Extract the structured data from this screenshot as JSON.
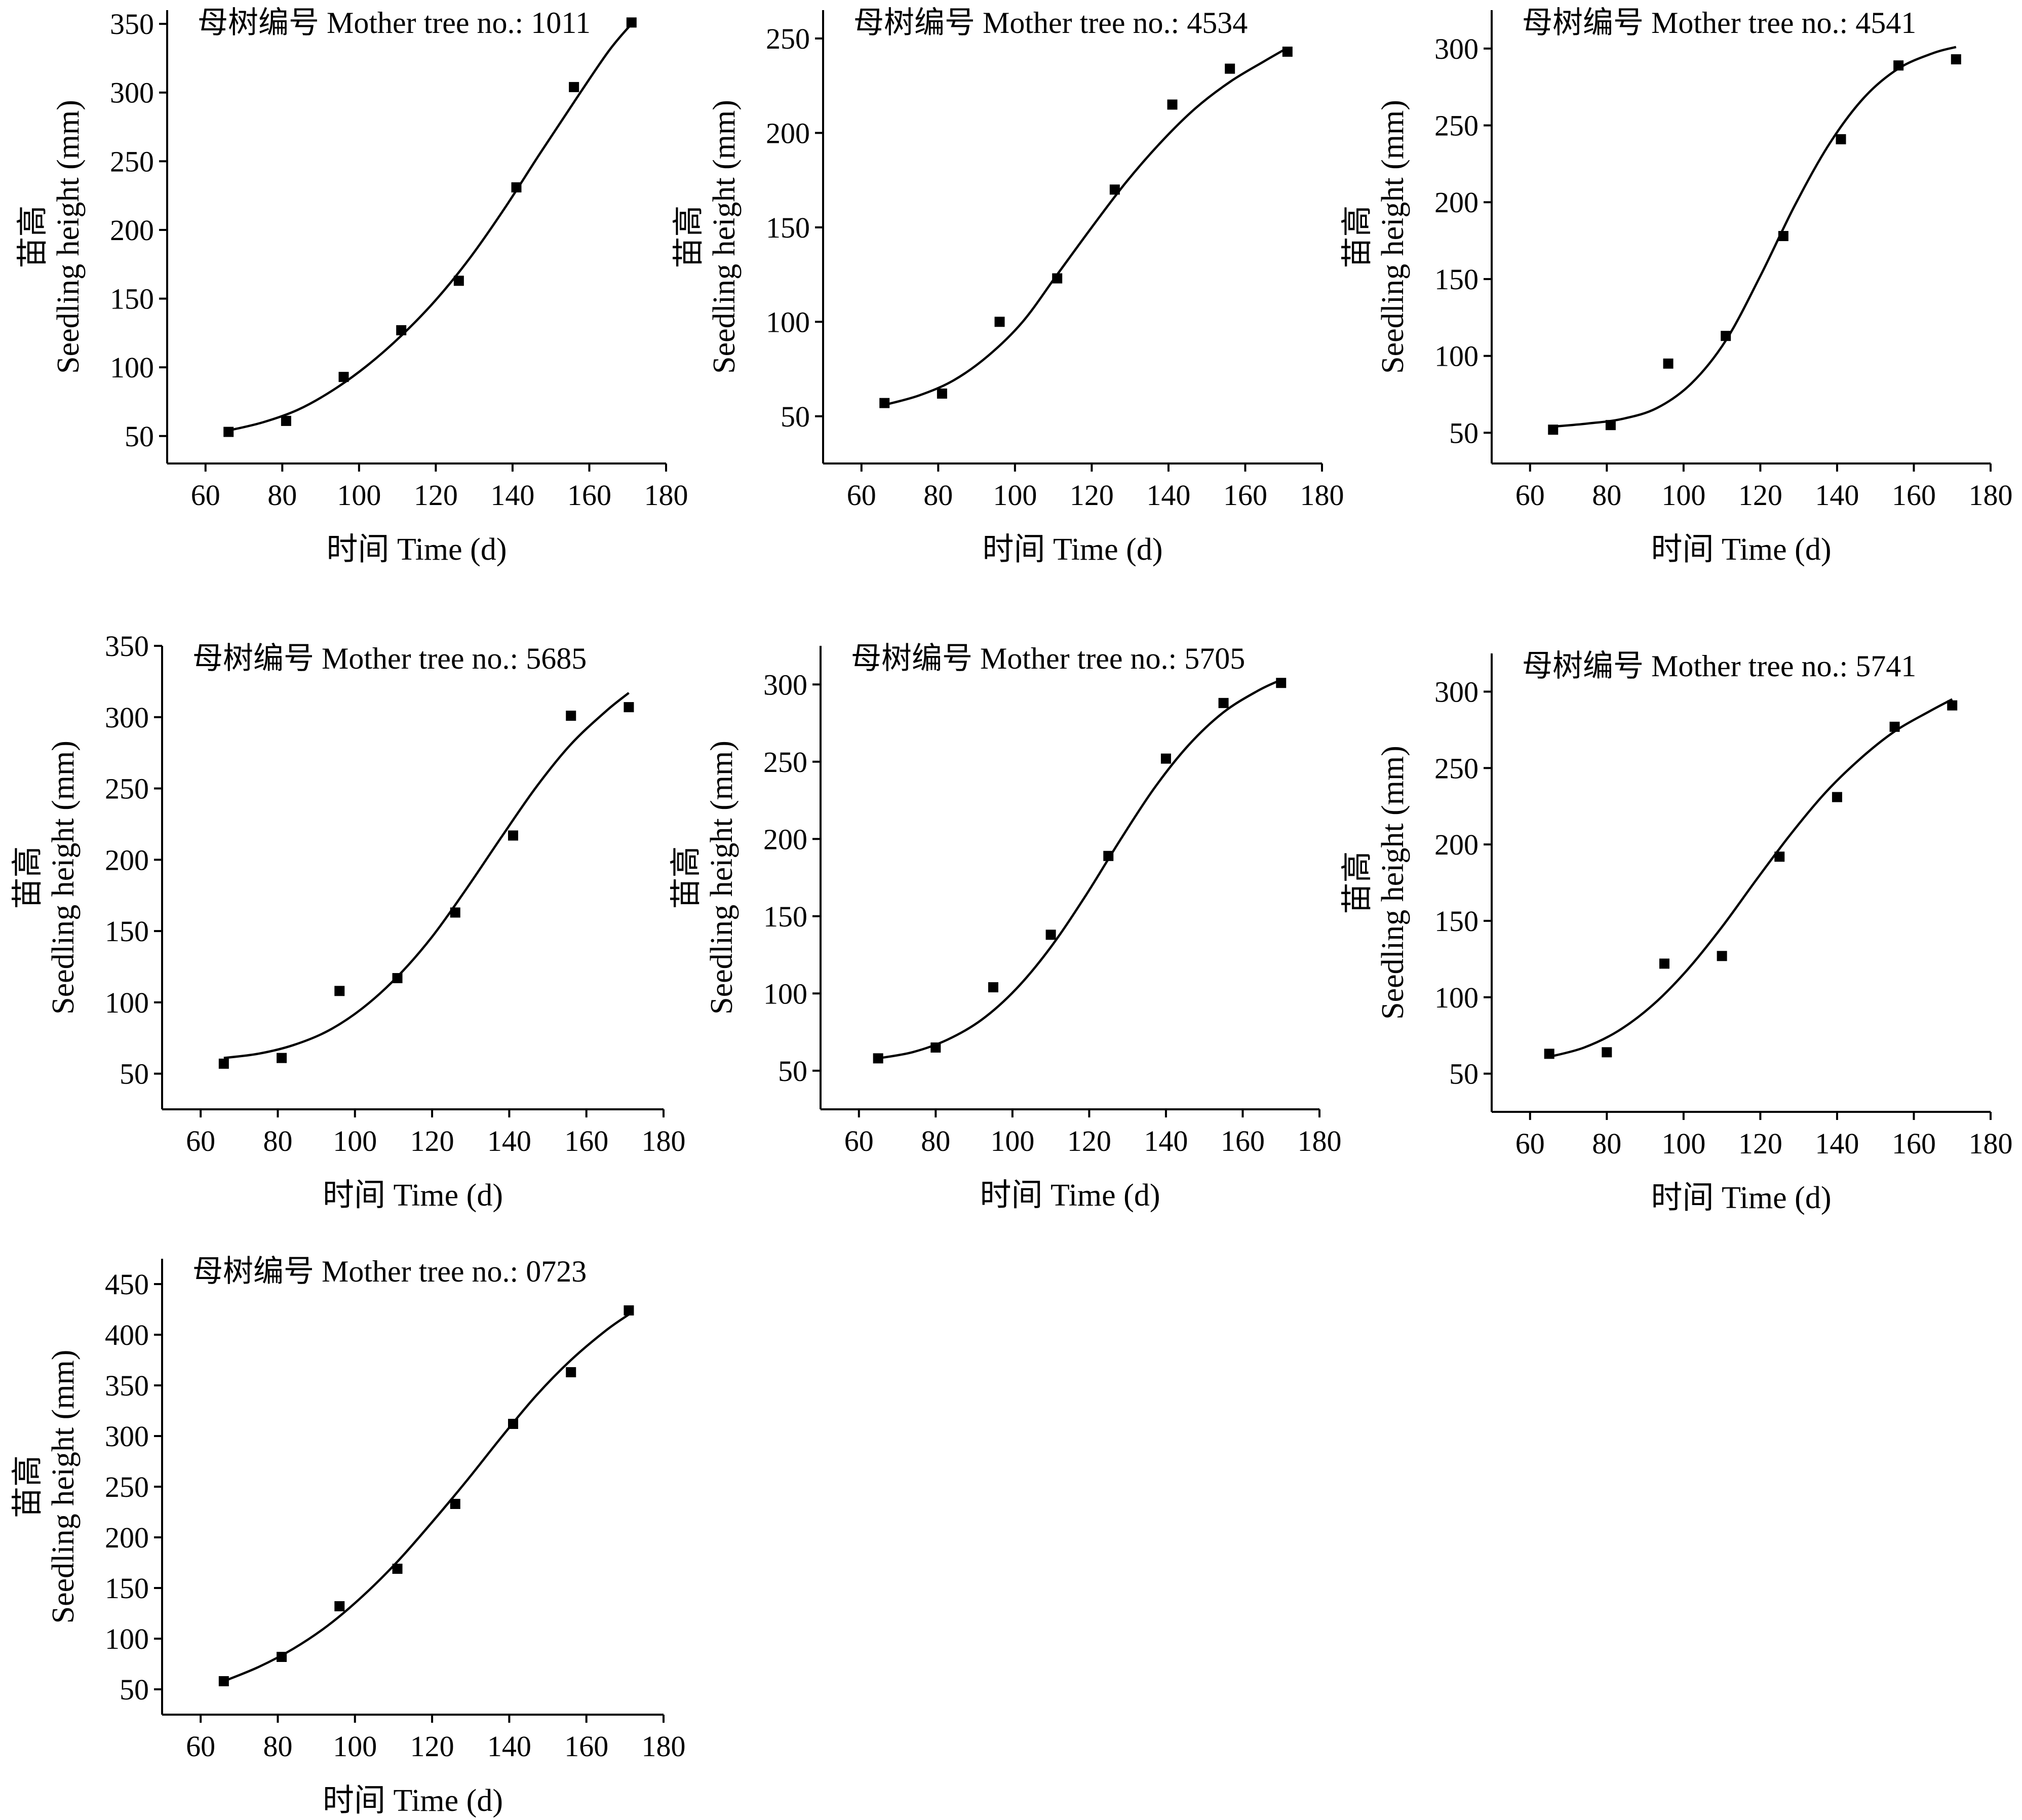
{
  "chart_data": [
    {
      "type": "scatter",
      "title": "母树编号 Mother tree no.: 1011",
      "ylabel_cn": "苗高",
      "ylabel": "Seedling height (mm)",
      "xlabel": "时间 Time (d)",
      "xlim": [
        50,
        180
      ],
      "ylim": [
        30,
        360
      ],
      "xticks": [
        "60",
        "80",
        "100",
        "120",
        "140",
        "160",
        "180"
      ],
      "yticks": [
        "50",
        "100",
        "150",
        "200",
        "250",
        "300",
        "350"
      ],
      "points": {
        "x": [
          66,
          81,
          96,
          111,
          126,
          141,
          156,
          171
        ],
        "y": [
          53,
          61,
          93,
          127,
          163,
          231,
          304,
          351
        ]
      },
      "fit": {
        "x": [
          66,
          75,
          84,
          93,
          102,
          111,
          120,
          129,
          138,
          147,
          156,
          165,
          171
        ],
        "y": [
          54,
          60,
          69,
          83,
          101,
          123,
          149,
          180,
          216,
          255,
          293,
          330,
          350
        ]
      },
      "colors": {
        "points": "#000000",
        "curve": "#000000"
      }
    },
    {
      "type": "scatter",
      "title": "母树编号 Mother tree no.: 4534",
      "ylabel_cn": "苗高",
      "ylabel": "Seedling height (mm)",
      "xlabel": "时间 Time (d)",
      "xlim": [
        50,
        180
      ],
      "ylim": [
        25,
        265
      ],
      "xticks": [
        "60",
        "80",
        "100",
        "120",
        "140",
        "160",
        "180"
      ],
      "yticks": [
        "50",
        "100",
        "150",
        "200",
        "250"
      ],
      "points": {
        "x": [
          66,
          81,
          96,
          111,
          126,
          141,
          156,
          171
        ],
        "y": [
          57,
          62,
          100,
          123,
          170,
          215,
          234,
          243
        ]
      },
      "fit": {
        "x": [
          66,
          75,
          84,
          93,
          102,
          111,
          120,
          129,
          138,
          147,
          156,
          165,
          171
        ],
        "y": [
          56,
          61,
          69,
          82,
          100,
          125,
          150,
          174,
          195,
          213,
          227,
          238,
          245
        ]
      },
      "colors": {
        "points": "#000000",
        "curve": "#000000"
      }
    },
    {
      "type": "scatter",
      "title": "母树编号 Mother tree no.: 4541",
      "ylabel_cn": "苗高",
      "ylabel": "Seedling height (mm)",
      "xlabel": "时间 Time (d)",
      "xlim": [
        50,
        180
      ],
      "ylim": [
        30,
        325
      ],
      "xticks": [
        "60",
        "80",
        "100",
        "120",
        "140",
        "160",
        "180"
      ],
      "yticks": [
        "50",
        "100",
        "150",
        "200",
        "250",
        "300"
      ],
      "points": {
        "x": [
          66,
          81,
          96,
          111,
          126,
          141,
          156,
          171
        ],
        "y": [
          52,
          55,
          95,
          113,
          178,
          241,
          289,
          293
        ]
      },
      "fit": {
        "x": [
          66,
          75,
          84,
          93,
          102,
          111,
          120,
          129,
          138,
          147,
          156,
          165,
          171
        ],
        "y": [
          54,
          56,
          59,
          66,
          82,
          110,
          152,
          198,
          238,
          268,
          287,
          297,
          301
        ]
      },
      "colors": {
        "points": "#000000",
        "curve": "#000000"
      }
    },
    {
      "type": "scatter",
      "title": "母树编号 Mother tree no.: 5685",
      "ylabel_cn": "苗高",
      "ylabel": "Seedling height (mm)",
      "xlabel": "时间 Time (d)",
      "xlim": [
        50,
        180
      ],
      "ylim": [
        25,
        350
      ],
      "xticks": [
        "60",
        "80",
        "100",
        "120",
        "140",
        "160",
        "180"
      ],
      "yticks": [
        "50",
        "100",
        "150",
        "200",
        "250",
        "300",
        "350"
      ],
      "points": {
        "x": [
          66,
          81,
          96,
          111,
          126,
          141,
          156,
          171
        ],
        "y": [
          57,
          61,
          108,
          117,
          163,
          217,
          301,
          307
        ]
      },
      "fit": {
        "x": [
          66,
          75,
          84,
          93,
          102,
          111,
          120,
          129,
          138,
          147,
          156,
          165,
          171
        ],
        "y": [
          61,
          64,
          70,
          80,
          96,
          118,
          146,
          180,
          216,
          251,
          281,
          304,
          317
        ]
      },
      "colors": {
        "points": "#000000",
        "curve": "#000000"
      }
    },
    {
      "type": "scatter",
      "title": "母树编号 Mother tree no.: 5705",
      "ylabel_cn": "苗高",
      "ylabel": "Seedling height (mm)",
      "xlabel": "时间 Time (d)",
      "xlim": [
        50,
        180
      ],
      "ylim": [
        25,
        325
      ],
      "xticks": [
        "60",
        "80",
        "100",
        "120",
        "140",
        "160",
        "180"
      ],
      "yticks": [
        "50",
        "100",
        "150",
        "200",
        "250",
        "300"
      ],
      "points": {
        "x": [
          65,
          80,
          95,
          110,
          125,
          140,
          155,
          170
        ],
        "y": [
          58,
          65,
          104,
          138,
          189,
          252,
          288,
          301
        ]
      },
      "fit": {
        "x": [
          65,
          74,
          83,
          92,
          101,
          110,
          119,
          128,
          137,
          146,
          155,
          164,
          170
        ],
        "y": [
          58,
          62,
          70,
          83,
          103,
          130,
          163,
          199,
          233,
          261,
          282,
          296,
          303
        ]
      },
      "colors": {
        "points": "#000000",
        "curve": "#000000"
      }
    },
    {
      "type": "scatter",
      "title": "母树编号 Mother tree no.: 5741",
      "ylabel_cn": "苗高",
      "ylabel": "Seedling height (mm)",
      "xlabel": "时间 Time (d)",
      "xlim": [
        50,
        180
      ],
      "ylim": [
        25,
        325
      ],
      "xticks": [
        "60",
        "80",
        "100",
        "120",
        "140",
        "160",
        "180"
      ],
      "yticks": [
        "50",
        "100",
        "150",
        "200",
        "250",
        "300"
      ],
      "points": {
        "x": [
          65,
          80,
          95,
          110,
          125,
          140,
          155,
          170
        ],
        "y": [
          63,
          64,
          122,
          127,
          192,
          231,
          277,
          291
        ]
      },
      "fit": {
        "x": [
          65,
          74,
          83,
          92,
          101,
          110,
          119,
          128,
          137,
          146,
          155,
          164,
          170
        ],
        "y": [
          61,
          67,
          78,
          95,
          118,
          146,
          177,
          207,
          234,
          256,
          274,
          287,
          295
        ]
      },
      "colors": {
        "points": "#000000",
        "curve": "#000000"
      }
    },
    {
      "type": "scatter",
      "title": "母树编号 Mother tree no.: 0723",
      "ylabel_cn": "苗高",
      "ylabel": "Seedling height (mm)",
      "xlabel": "时间 Time (d)",
      "xlim": [
        50,
        180
      ],
      "ylim": [
        25,
        475
      ],
      "xticks": [
        "60",
        "80",
        "100",
        "120",
        "140",
        "160",
        "180"
      ],
      "yticks": [
        "50",
        "100",
        "150",
        "200",
        "250",
        "300",
        "350",
        "400",
        "450"
      ],
      "points": {
        "x": [
          66,
          81,
          96,
          111,
          126,
          141,
          156,
          171
        ],
        "y": [
          58,
          82,
          132,
          169,
          233,
          312,
          363,
          424
        ]
      },
      "fit": {
        "x": [
          66,
          75,
          84,
          93,
          102,
          111,
          120,
          129,
          138,
          147,
          156,
          165,
          171
        ],
        "y": [
          58,
          72,
          90,
          113,
          142,
          176,
          215,
          256,
          299,
          340,
          375,
          404,
          420
        ]
      },
      "colors": {
        "points": "#000000",
        "curve": "#000000"
      }
    }
  ]
}
